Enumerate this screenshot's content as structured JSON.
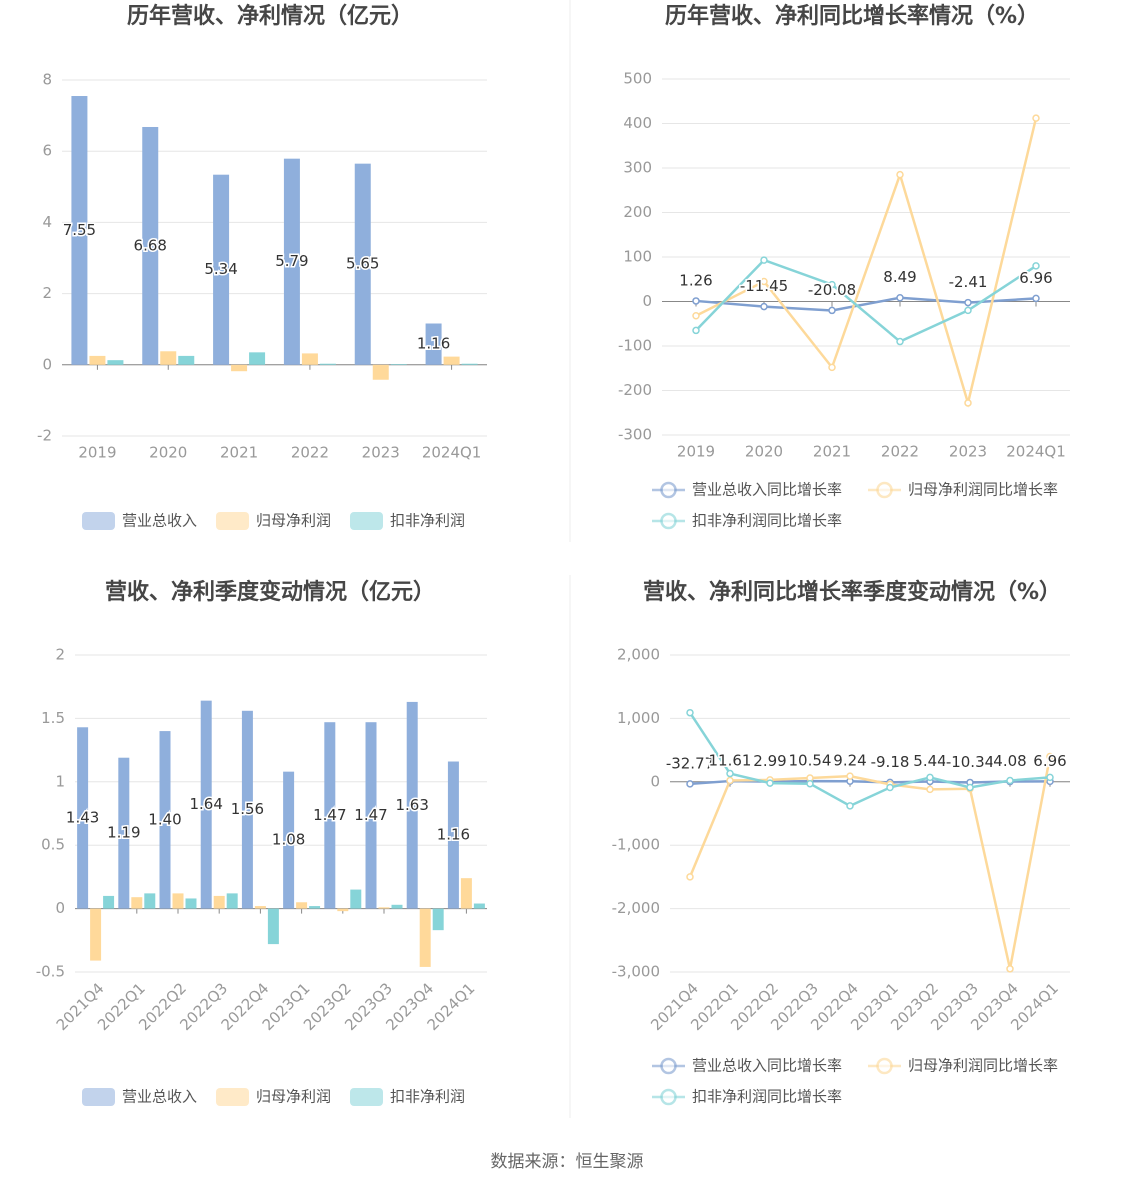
{
  "chart_data": [
    {
      "type": "bar",
      "title": "历年营收、净利情况（亿元）",
      "categories": [
        "2019",
        "2020",
        "2021",
        "2022",
        "2023",
        "2024Q1"
      ],
      "series": [
        {
          "name": "营业总收入",
          "color": "#8fafdc",
          "values": [
            7.55,
            6.68,
            5.34,
            5.79,
            5.65,
            1.16
          ],
          "value_labels": [
            "7.55",
            "6.68",
            "5.34",
            "5.79",
            "5.65",
            "1.16"
          ]
        },
        {
          "name": "归母净利润",
          "color": "#ffd99a",
          "values": [
            0.25,
            0.38,
            -0.18,
            0.32,
            -0.42,
            0.23
          ]
        },
        {
          "name": "扣非净利润",
          "color": "#86d4d8",
          "values": [
            0.13,
            0.25,
            0.35,
            0.03,
            0.02,
            0.03
          ]
        }
      ],
      "ylim": [
        -2,
        8
      ],
      "yticks": [
        -2,
        0,
        2,
        4,
        6,
        8
      ],
      "grid": true,
      "legend": "bottom"
    },
    {
      "type": "line",
      "title": "历年营收、净利同比增长率情况（%）",
      "categories": [
        "2019",
        "2020",
        "2021",
        "2022",
        "2023",
        "2024Q1"
      ],
      "series": [
        {
          "name": "营业总收入同比增长率",
          "color": "#7f9fd0",
          "values": [
            1.26,
            -11.45,
            -20.08,
            8.49,
            -2.41,
            6.96
          ],
          "value_labels": [
            "1.26",
            "-11.45",
            "-20.08",
            "8.49",
            "-2.41",
            "6.96"
          ]
        },
        {
          "name": "归母净利润同比增长率",
          "color": "#fdd99a",
          "values": [
            -32,
            45,
            -148,
            285,
            -228,
            412
          ]
        },
        {
          "name": "扣非净利润同比增长率",
          "color": "#86d4d8",
          "values": [
            -65,
            93,
            38,
            -90,
            -20,
            80
          ]
        }
      ],
      "ylim": [
        -300,
        500
      ],
      "yticks": [
        -300,
        -200,
        -100,
        0,
        100,
        200,
        300,
        400,
        500
      ],
      "grid": true,
      "legend": "bottom"
    },
    {
      "type": "bar",
      "title": "营收、净利季度变动情况（亿元）",
      "categories": [
        "2021Q4",
        "2022Q1",
        "2022Q2",
        "2022Q3",
        "2022Q4",
        "2023Q1",
        "2023Q2",
        "2023Q3",
        "2023Q4",
        "2024Q1"
      ],
      "series": [
        {
          "name": "营业总收入",
          "color": "#8fafdc",
          "values": [
            1.43,
            1.19,
            1.4,
            1.64,
            1.56,
            1.08,
            1.47,
            1.47,
            1.63,
            1.16
          ],
          "value_labels": [
            "1.43",
            "1.19",
            "1.40",
            "1.64",
            "1.56",
            "1.08",
            "1.47",
            "1.47",
            "1.63",
            "1.16"
          ]
        },
        {
          "name": "归母净利润",
          "color": "#ffd99a",
          "values": [
            -0.41,
            0.09,
            0.12,
            0.1,
            0.02,
            0.05,
            -0.02,
            0.01,
            -0.46,
            0.24
          ]
        },
        {
          "name": "扣非净利润",
          "color": "#86d4d8",
          "values": [
            0.1,
            0.12,
            0.08,
            0.12,
            -0.28,
            0.02,
            0.15,
            0.03,
            -0.17,
            0.04
          ]
        }
      ],
      "ylim": [
        -0.5,
        2
      ],
      "yticks": [
        -0.5,
        0,
        0.5,
        1,
        1.5,
        2
      ],
      "grid": true,
      "legend": "bottom"
    },
    {
      "type": "line",
      "title": "营收、净利同比增长率季度变动情况（%）",
      "categories": [
        "2021Q4",
        "2022Q1",
        "2022Q2",
        "2022Q3",
        "2022Q4",
        "2023Q1",
        "2023Q2",
        "2023Q3",
        "2023Q4",
        "2024Q1"
      ],
      "series": [
        {
          "name": "营业总收入同比增长率",
          "color": "#7f9fd0",
          "values": [
            -32.77,
            11.61,
            2.99,
            10.54,
            9.24,
            -9.18,
            5.44,
            -10.34,
            4.08,
            6.96
          ],
          "value_labels": [
            "-32.77",
            "11.61",
            "2.99",
            "10.54",
            "9.24",
            "-9.18",
            "5.44",
            "-10.34",
            "4.08",
            "6.96"
          ]
        },
        {
          "name": "归母净利润同比增长率",
          "color": "#fdd99a",
          "values": [
            -1500,
            20,
            30,
            60,
            90,
            -40,
            -120,
            -110,
            -2950,
            400
          ]
        },
        {
          "name": "扣非净利润同比增长率",
          "color": "#86d4d8",
          "values": [
            1090,
            130,
            -20,
            -30,
            -380,
            -90,
            70,
            -90,
            20,
            70
          ]
        }
      ],
      "ylim": [
        -3000,
        2000
      ],
      "yticks": [
        {
          "value": -3000,
          "label": "-3,000"
        },
        {
          "value": -2000,
          "label": "-2,000"
        },
        {
          "value": -1000,
          "label": "-1,000"
        },
        0,
        {
          "value": 1000,
          "label": "1,000"
        },
        {
          "value": 2000,
          "label": "2,000"
        }
      ],
      "grid": true,
      "legend": "bottom"
    }
  ],
  "source": "数据来源：恒生聚源"
}
